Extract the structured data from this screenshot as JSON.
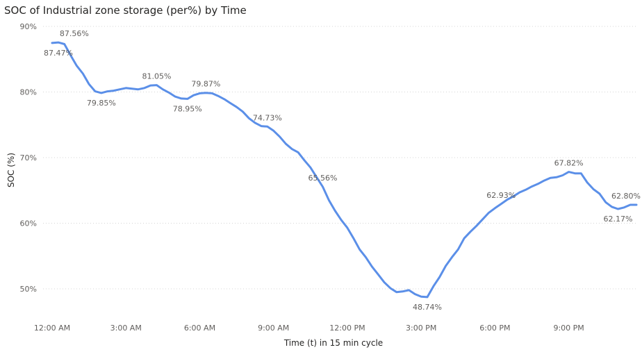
{
  "chart_data": {
    "type": "line",
    "title": "SOC of Industrial zone storage (per%) by Time",
    "xlabel": "Time (t) in 15 min cycle",
    "ylabel": "SOC (%)",
    "ylim": [
      45,
      90
    ],
    "y_ticks": [
      {
        "value": 90,
        "label": "90%"
      },
      {
        "value": 80,
        "label": "80%"
      },
      {
        "value": 70,
        "label": "70%"
      },
      {
        "value": 60,
        "label": "60%"
      },
      {
        "value": 50,
        "label": "50%"
      }
    ],
    "x_ticks": [
      {
        "value": 0,
        "label": "12:00 AM"
      },
      {
        "value": 3,
        "label": "3:00 AM"
      },
      {
        "value": 6,
        "label": "6:00 AM"
      },
      {
        "value": 9,
        "label": "9:00 AM"
      },
      {
        "value": 12,
        "label": "12:00 PM"
      },
      {
        "value": 15,
        "label": "3:00 PM"
      },
      {
        "value": 18,
        "label": "6:00 PM"
      },
      {
        "value": 21,
        "label": "9:00 PM"
      }
    ],
    "xlim": [
      0,
      23.75
    ],
    "grid": true,
    "line_color": "#5b8fe8",
    "x_hours": [
      0,
      0.25,
      0.5,
      0.75,
      1,
      1.25,
      1.5,
      1.75,
      2,
      2.25,
      2.5,
      2.75,
      3,
      3.25,
      3.5,
      3.75,
      4,
      4.25,
      4.5,
      4.75,
      5,
      5.25,
      5.5,
      5.75,
      6,
      6.25,
      6.5,
      6.75,
      7,
      7.25,
      7.5,
      7.75,
      8,
      8.25,
      8.5,
      8.75,
      9,
      9.25,
      9.5,
      9.75,
      10,
      10.25,
      10.5,
      10.75,
      11,
      11.25,
      11.5,
      11.75,
      12,
      12.25,
      12.5,
      12.75,
      13,
      13.25,
      13.5,
      13.75,
      14,
      14.25,
      14.5,
      14.75,
      15,
      15.25,
      15.5,
      15.75,
      16,
      16.25,
      16.5,
      16.75,
      17,
      17.25,
      17.5,
      17.75,
      18,
      18.25,
      18.5,
      18.75,
      19,
      19.25,
      19.5,
      19.75,
      20,
      20.25,
      20.5,
      20.75,
      21,
      21.25,
      21.5,
      21.75,
      22,
      22.25,
      22.5,
      22.75,
      23,
      23.25,
      23.5,
      23.75
    ],
    "values": [
      87.47,
      87.56,
      87.3,
      85.6,
      84.0,
      82.8,
      81.2,
      80.1,
      79.85,
      80.1,
      80.2,
      80.4,
      80.6,
      80.5,
      80.4,
      80.6,
      81.0,
      81.05,
      80.4,
      79.9,
      79.3,
      79.0,
      78.95,
      79.5,
      79.8,
      79.87,
      79.8,
      79.4,
      78.9,
      78.3,
      77.7,
      77.0,
      76.0,
      75.3,
      74.8,
      74.73,
      74.1,
      73.2,
      72.1,
      71.3,
      70.8,
      69.6,
      68.5,
      67.0,
      65.56,
      63.5,
      61.9,
      60.5,
      59.3,
      57.7,
      56.0,
      54.8,
      53.4,
      52.2,
      51.0,
      50.1,
      49.5,
      49.6,
      49.8,
      49.2,
      48.8,
      48.74,
      50.4,
      51.8,
      53.5,
      54.8,
      56.0,
      57.7,
      58.7,
      59.6,
      60.6,
      61.6,
      62.3,
      62.93,
      63.6,
      64.1,
      64.7,
      65.1,
      65.6,
      66.0,
      66.5,
      66.9,
      67.0,
      67.3,
      67.82,
      67.6,
      67.6,
      66.2,
      65.2,
      64.5,
      63.2,
      62.5,
      62.17,
      62.4,
      62.8,
      62.8
    ],
    "annotations": [
      {
        "i": 0,
        "label": "87.47%",
        "pos": "below"
      },
      {
        "i": 1,
        "label": "87.56%",
        "pos": "above-right"
      },
      {
        "i": 8,
        "label": "79.85%",
        "pos": "below"
      },
      {
        "i": 17,
        "label": "81.05%",
        "pos": "above"
      },
      {
        "i": 22,
        "label": "78.95%",
        "pos": "below"
      },
      {
        "i": 25,
        "label": "79.87%",
        "pos": "above"
      },
      {
        "i": 35,
        "label": "74.73%",
        "pos": "above"
      },
      {
        "i": 44,
        "label": "65.56%",
        "pos": "above"
      },
      {
        "i": 61,
        "label": "48.74%",
        "pos": "below"
      },
      {
        "i": 73,
        "label": "62.93%",
        "pos": "above"
      },
      {
        "i": 84,
        "label": "67.82%",
        "pos": "above"
      },
      {
        "i": 92,
        "label": "62.17%",
        "pos": "below"
      },
      {
        "i": 95,
        "label": "62.80%",
        "pos": "above"
      }
    ]
  }
}
